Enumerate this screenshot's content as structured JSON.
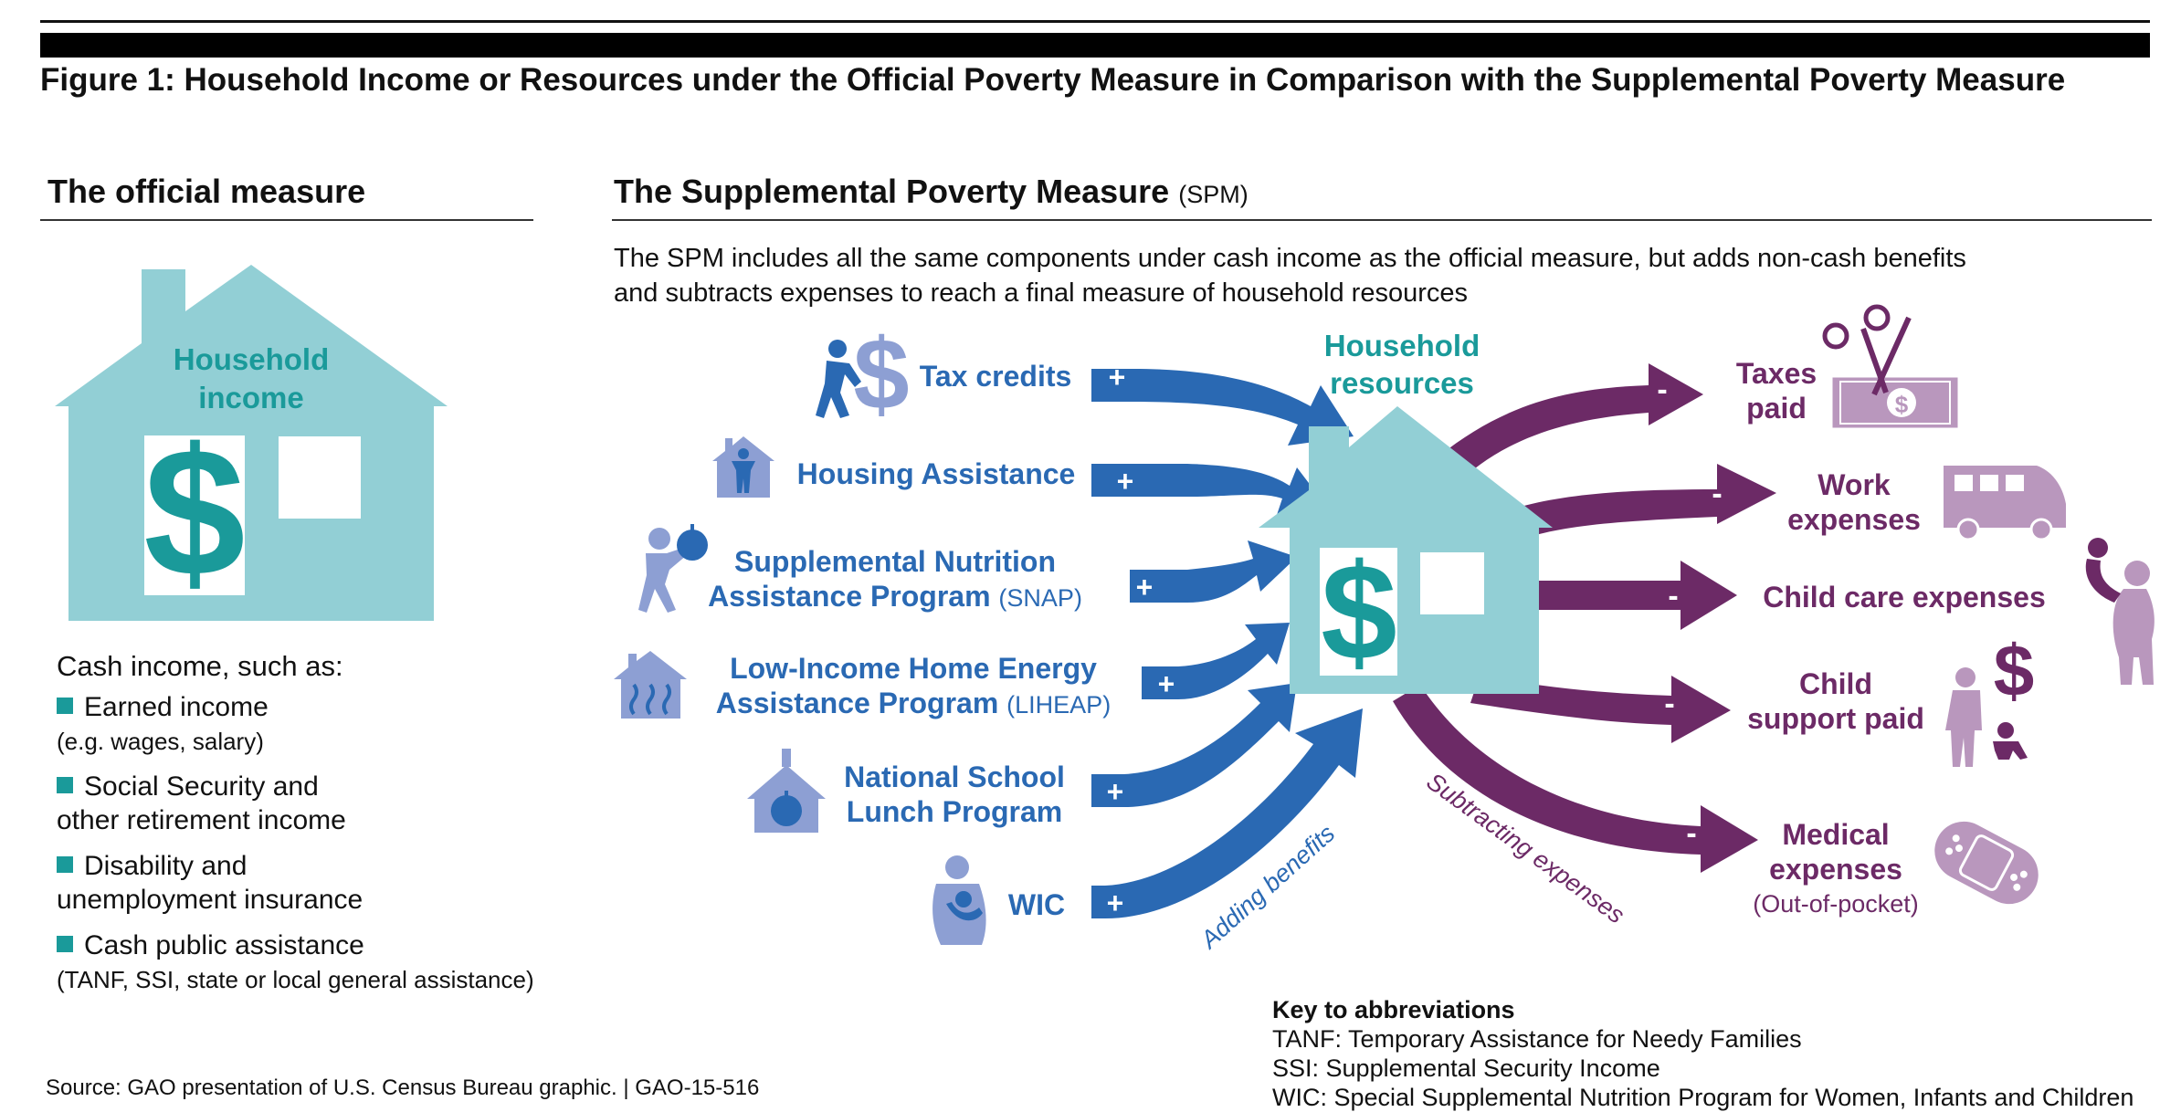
{
  "figure_title": "Figure 1: Household Income or Resources under the Official Poverty Measure in Comparison with the Supplemental Poverty Measure",
  "official": {
    "heading": "The official measure",
    "house_label_1": "Household",
    "house_label_2": "income",
    "dollar": "$",
    "cash_intro": "Cash income, such as:",
    "items": [
      {
        "main": "Earned income",
        "sub": "(e.g. wages, salary)"
      },
      {
        "main": "Social Security and",
        "main2": "other retirement income"
      },
      {
        "main": "Disability and",
        "main2": "unemployment insurance"
      },
      {
        "main": "Cash public assistance",
        "sub": "(TANF, SSI, state or local general assistance)"
      }
    ]
  },
  "spm": {
    "heading": "The Supplemental Poverty Measure",
    "heading_abbr": "(SPM)",
    "intro_1": "The SPM includes all the same components under cash income as the official measure, but adds non-cash benefits",
    "intro_2": "and subtracts expenses to reach a final measure of household resources",
    "house_label_1": "Household",
    "house_label_2": "resources",
    "dollar": "$",
    "plus": "+",
    "minus": "-",
    "adding_label": "Adding benefits",
    "subtracting_label": "Subtracting expenses",
    "benefits": [
      {
        "line1": "Tax credits"
      },
      {
        "line1": "Housing Assistance"
      },
      {
        "line1": "Supplemental Nutrition",
        "line2": "Assistance Program",
        "abbr": "(SNAP)"
      },
      {
        "line1": "Low-Income Home Energy",
        "line2": "Assistance Program",
        "abbr": "(LIHEAP)"
      },
      {
        "line1": "National School",
        "line2": "Lunch Program"
      },
      {
        "line1": "WIC"
      }
    ],
    "expenses": [
      {
        "line1": "Taxes",
        "line2": "paid"
      },
      {
        "line1": "Work",
        "line2": "expenses"
      },
      {
        "line1": "Child care expenses"
      },
      {
        "line1": "Child",
        "line2": "support paid"
      },
      {
        "line1": "Medical",
        "line2": "expenses",
        "note": "(Out-of-pocket)"
      }
    ]
  },
  "key": {
    "heading": "Key to abbreviations",
    "lines": [
      "TANF: Temporary Assistance for Needy Families",
      "SSI: Supplemental Security Income",
      "WIC: Special Supplemental Nutrition Program for Women, Infants and Children"
    ]
  },
  "source": "Source: GAO presentation of U.S. Census Bureau graphic.  |  GAO-15-516",
  "colors": {
    "teal": "#1a9a9a",
    "house": "#92cfd5",
    "blue_arrow": "#2a69b3",
    "purple_arrow": "#6c2a66",
    "blue_icon": "#8d9fd3",
    "purple_icon": "#b997bd"
  },
  "icons": [
    "tax-credit-person-dollar-icon",
    "house-person-icon",
    "person-apple-icon",
    "house-heat-icon",
    "schoolhouse-apple-icon",
    "mother-baby-icon",
    "scissors-bill-icon",
    "van-icon",
    "parent-child-icon",
    "parent-dollar-baby-icon",
    "bandage-icon"
  ]
}
